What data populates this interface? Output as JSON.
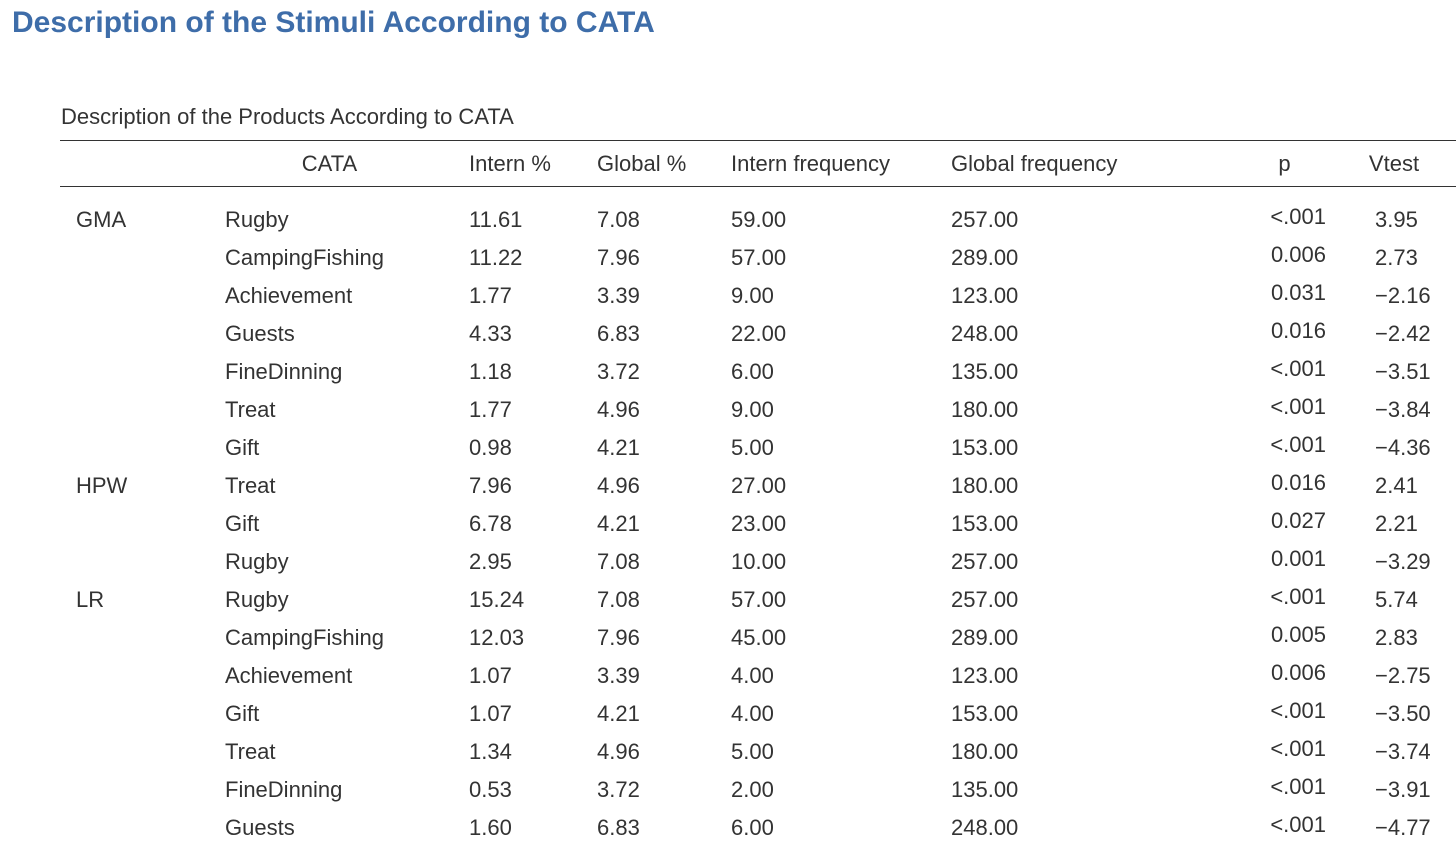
{
  "heading": "Description of the Stimuli According to CATA",
  "table": {
    "caption": "Description of the Products According to CATA",
    "columns": {
      "product": "",
      "cata": "CATA",
      "intern_pct": "Intern %",
      "global_pct": "Global %",
      "intern_freq": "Intern frequency",
      "global_freq": "Global frequency",
      "p": "p",
      "vtest": "Vtest"
    },
    "rows": [
      {
        "product": "GMA",
        "cata": "Rugby",
        "intern_pct": "11.61",
        "global_pct": "7.08",
        "intern_freq": "59.00",
        "global_freq": "257.00",
        "p": "<.001",
        "vtest": "3.95"
      },
      {
        "product": "",
        "cata": "CampingFishing",
        "intern_pct": "11.22",
        "global_pct": "7.96",
        "intern_freq": "57.00",
        "global_freq": "289.00",
        "p": "0.006",
        "vtest": "2.73"
      },
      {
        "product": "",
        "cata": "Achievement",
        "intern_pct": "1.77",
        "global_pct": "3.39",
        "intern_freq": "9.00",
        "global_freq": "123.00",
        "p": "0.031",
        "vtest": "−2.16"
      },
      {
        "product": "",
        "cata": "Guests",
        "intern_pct": "4.33",
        "global_pct": "6.83",
        "intern_freq": "22.00",
        "global_freq": "248.00",
        "p": "0.016",
        "vtest": "−2.42"
      },
      {
        "product": "",
        "cata": "FineDinning",
        "intern_pct": "1.18",
        "global_pct": "3.72",
        "intern_freq": "6.00",
        "global_freq": "135.00",
        "p": "<.001",
        "vtest": "−3.51"
      },
      {
        "product": "",
        "cata": "Treat",
        "intern_pct": "1.77",
        "global_pct": "4.96",
        "intern_freq": "9.00",
        "global_freq": "180.00",
        "p": "<.001",
        "vtest": "−3.84"
      },
      {
        "product": "",
        "cata": "Gift",
        "intern_pct": "0.98",
        "global_pct": "4.21",
        "intern_freq": "5.00",
        "global_freq": "153.00",
        "p": "<.001",
        "vtest": "−4.36"
      },
      {
        "product": "HPW",
        "cata": "Treat",
        "intern_pct": "7.96",
        "global_pct": "4.96",
        "intern_freq": "27.00",
        "global_freq": "180.00",
        "p": "0.016",
        "vtest": "2.41"
      },
      {
        "product": "",
        "cata": "Gift",
        "intern_pct": "6.78",
        "global_pct": "4.21",
        "intern_freq": "23.00",
        "global_freq": "153.00",
        "p": "0.027",
        "vtest": "2.21"
      },
      {
        "product": "",
        "cata": "Rugby",
        "intern_pct": "2.95",
        "global_pct": "7.08",
        "intern_freq": "10.00",
        "global_freq": "257.00",
        "p": "0.001",
        "vtest": "−3.29"
      },
      {
        "product": "LR",
        "cata": "Rugby",
        "intern_pct": "15.24",
        "global_pct": "7.08",
        "intern_freq": "57.00",
        "global_freq": "257.00",
        "p": "<.001",
        "vtest": "5.74"
      },
      {
        "product": "",
        "cata": "CampingFishing",
        "intern_pct": "12.03",
        "global_pct": "7.96",
        "intern_freq": "45.00",
        "global_freq": "289.00",
        "p": "0.005",
        "vtest": "2.83"
      },
      {
        "product": "",
        "cata": "Achievement",
        "intern_pct": "1.07",
        "global_pct": "3.39",
        "intern_freq": "4.00",
        "global_freq": "123.00",
        "p": "0.006",
        "vtest": "−2.75"
      },
      {
        "product": "",
        "cata": "Gift",
        "intern_pct": "1.07",
        "global_pct": "4.21",
        "intern_freq": "4.00",
        "global_freq": "153.00",
        "p": "<.001",
        "vtest": "−3.50"
      },
      {
        "product": "",
        "cata": "Treat",
        "intern_pct": "1.34",
        "global_pct": "4.96",
        "intern_freq": "5.00",
        "global_freq": "180.00",
        "p": "<.001",
        "vtest": "−3.74"
      },
      {
        "product": "",
        "cata": "FineDinning",
        "intern_pct": "0.53",
        "global_pct": "3.72",
        "intern_freq": "2.00",
        "global_freq": "135.00",
        "p": "<.001",
        "vtest": "−3.91"
      },
      {
        "product": "",
        "cata": "Guests",
        "intern_pct": "1.60",
        "global_pct": "6.83",
        "intern_freq": "6.00",
        "global_freq": "248.00",
        "p": "<.001",
        "vtest": "−4.77"
      }
    ]
  },
  "colors": {
    "heading": "#3e6da9",
    "text": "#333333",
    "rule": "#333333"
  }
}
